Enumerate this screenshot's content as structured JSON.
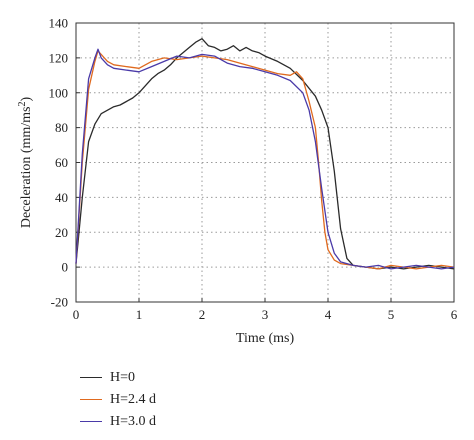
{
  "chart_data": {
    "type": "line",
    "title": "",
    "xlabel": "Time (ms)",
    "ylabel_main": "Deceleration (mm/ms",
    "ylabel_sup": "2",
    "ylabel_end": ")",
    "xlim": [
      0,
      6
    ],
    "ylim": [
      -20,
      140
    ],
    "xticks": [
      0,
      1,
      2,
      3,
      4,
      5,
      6
    ],
    "yticks": [
      -20,
      0,
      20,
      40,
      60,
      80,
      100,
      120,
      140
    ],
    "grid": true,
    "legend_position": "below",
    "series": [
      {
        "name": "H=0",
        "color": "#2b2b2b",
        "x": [
          0,
          0.1,
          0.2,
          0.3,
          0.4,
          0.5,
          0.6,
          0.7,
          0.8,
          0.9,
          1.0,
          1.1,
          1.2,
          1.3,
          1.4,
          1.5,
          1.6,
          1.7,
          1.8,
          1.9,
          2.0,
          2.1,
          2.2,
          2.3,
          2.4,
          2.5,
          2.6,
          2.7,
          2.8,
          2.9,
          3.0,
          3.2,
          3.4,
          3.6,
          3.8,
          3.9,
          4.0,
          4.1,
          4.2,
          4.3,
          4.4,
          4.6,
          4.8,
          5.0,
          5.2,
          5.4,
          5.6,
          5.8,
          6.0
        ],
        "y": [
          2,
          40,
          72,
          82,
          88,
          90,
          92,
          93,
          95,
          97,
          100,
          104,
          108,
          111,
          113,
          116,
          120,
          123,
          126,
          129,
          131,
          127,
          126,
          124,
          125,
          127,
          124,
          126,
          124,
          123,
          121,
          118,
          114,
          107,
          98,
          90,
          80,
          55,
          22,
          5,
          1,
          0,
          -1,
          0,
          -1,
          0,
          1,
          0,
          -1
        ]
      },
      {
        "name": "H=2.4 d",
        "color": "#e06a1f",
        "x": [
          0,
          0.1,
          0.2,
          0.3,
          0.35,
          0.4,
          0.5,
          0.6,
          0.8,
          1.0,
          1.2,
          1.4,
          1.6,
          1.8,
          2.0,
          2.2,
          2.4,
          2.6,
          2.8,
          3.0,
          3.2,
          3.4,
          3.5,
          3.6,
          3.7,
          3.8,
          3.85,
          3.9,
          3.95,
          4.0,
          4.1,
          4.2,
          4.4,
          4.6,
          4.8,
          5.0,
          5.2,
          5.4,
          5.6,
          5.8,
          6.0
        ],
        "y": [
          2,
          60,
          102,
          118,
          124,
          122,
          118,
          116,
          115,
          114,
          118,
          120,
          119,
          120,
          121,
          120,
          119,
          117,
          115,
          113,
          111,
          110,
          112,
          108,
          95,
          80,
          60,
          38,
          20,
          10,
          4,
          2,
          1,
          0,
          -1,
          1,
          0,
          -1,
          0,
          1,
          0
        ]
      },
      {
        "name": "H=3.0 d",
        "color": "#4a3aa8",
        "x": [
          0,
          0.1,
          0.2,
          0.3,
          0.35,
          0.4,
          0.5,
          0.6,
          0.8,
          1.0,
          1.2,
          1.4,
          1.6,
          1.8,
          2.0,
          2.2,
          2.4,
          2.6,
          2.8,
          3.0,
          3.2,
          3.4,
          3.6,
          3.7,
          3.8,
          3.9,
          4.0,
          4.1,
          4.2,
          4.4,
          4.6,
          4.8,
          5.0,
          5.2,
          5.4,
          5.6,
          5.8,
          6.0
        ],
        "y": [
          2,
          65,
          108,
          120,
          125,
          120,
          116,
          114,
          113,
          112,
          115,
          118,
          121,
          120,
          122,
          121,
          117,
          115,
          114,
          112,
          110,
          107,
          100,
          90,
          72,
          45,
          20,
          8,
          3,
          1,
          0,
          1,
          -1,
          0,
          1,
          0,
          -1,
          0
        ]
      }
    ]
  }
}
